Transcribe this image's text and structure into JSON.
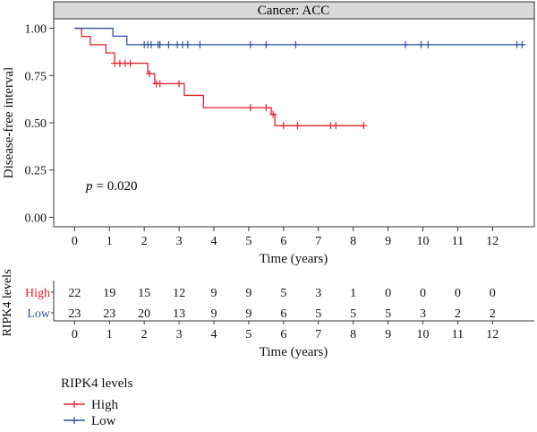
{
  "chart_data": {
    "type": "line",
    "title": "Cancer: ACC",
    "xlabel": "Time (years)",
    "ylabel": "Disease-free interval",
    "xlim": [
      -0.6,
      13.2
    ],
    "ylim": [
      -0.05,
      1.05
    ],
    "x_ticks": [
      0,
      1,
      2,
      3,
      4,
      5,
      6,
      7,
      8,
      9,
      10,
      11,
      12
    ],
    "y_ticks": [
      0.0,
      0.25,
      0.5,
      0.75,
      1.0
    ],
    "y_tick_labels": [
      "0.00",
      "0.25",
      "0.50",
      "0.75",
      "1.00"
    ],
    "annotation_p_label": "p",
    "annotation_p_value": "= 0.020",
    "series": [
      {
        "name": "High",
        "color": "#e8212b",
        "steps": [
          [
            0,
            1.0
          ],
          [
            0.2,
            0.957
          ],
          [
            0.45,
            0.913
          ],
          [
            0.9,
            0.87
          ],
          [
            1.15,
            0.815
          ],
          [
            2.1,
            0.76
          ],
          [
            2.3,
            0.707
          ],
          [
            3.15,
            0.645
          ],
          [
            3.7,
            0.58
          ],
          [
            5.65,
            0.545
          ],
          [
            5.75,
            0.485
          ],
          [
            8.3,
            0.485
          ]
        ],
        "censor_x": [
          1.15,
          1.3,
          1.45,
          1.6,
          2.15,
          2.35,
          2.45,
          3.0,
          5.05,
          5.5,
          5.7,
          6.0,
          6.4,
          7.35,
          7.5,
          8.3
        ]
      },
      {
        "name": "Low",
        "color": "#2c52a6",
        "steps": [
          [
            0,
            1.0
          ],
          [
            1.1,
            0.958
          ],
          [
            1.5,
            0.913
          ],
          [
            12.9,
            0.913
          ]
        ],
        "censor_x": [
          2.0,
          2.1,
          2.2,
          2.4,
          2.45,
          2.7,
          2.95,
          3.1,
          3.25,
          3.6,
          5.05,
          5.5,
          6.35,
          9.5,
          9.95,
          10.15,
          12.7,
          12.85
        ]
      }
    ],
    "risk_table": {
      "title": "RIPK4 levels",
      "xlabel": "Time (years)",
      "x_ticks": [
        0,
        1,
        2,
        3,
        4,
        5,
        6,
        7,
        8,
        9,
        10,
        11,
        12
      ],
      "rows": [
        {
          "name": "High",
          "color": "#e8212b",
          "values": [
            22,
            19,
            15,
            12,
            9,
            9,
            5,
            3,
            1,
            0,
            0,
            0,
            0
          ]
        },
        {
          "name": "Low",
          "color": "#2c52a6",
          "values": [
            23,
            23,
            20,
            13,
            9,
            9,
            6,
            5,
            5,
            5,
            3,
            2,
            2
          ]
        }
      ]
    },
    "legend": {
      "title": "RIPK4 levels",
      "placement": "bottom-left",
      "entries": [
        "High",
        "Low"
      ]
    },
    "grid": false
  }
}
